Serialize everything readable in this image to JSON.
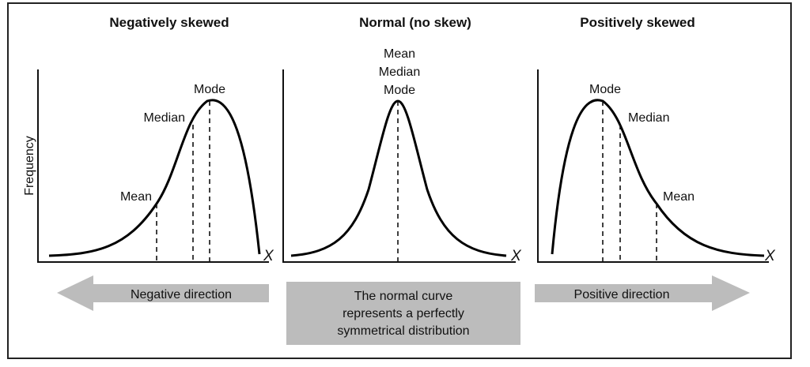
{
  "panels": [
    {
      "title": "Negatively skewed",
      "labels": {
        "mode": "Mode",
        "median": "Median",
        "mean": "Mean"
      },
      "x_label": "X"
    },
    {
      "title": "Normal (no skew)",
      "labels": {
        "mean": "Mean",
        "median": "Median",
        "mode": "Mode"
      },
      "x_label": "X"
    },
    {
      "title": "Positively skewed",
      "labels": {
        "mode": "Mode",
        "median": "Median",
        "mean": "Mean"
      },
      "x_label": "X"
    }
  ],
  "y_label": "Frequency",
  "bottom": {
    "left_arrow": "Negative direction",
    "center_lines": [
      "The normal curve",
      "represents a perfectly",
      "symmetrical distribution"
    ],
    "right_arrow": "Positive direction"
  }
}
